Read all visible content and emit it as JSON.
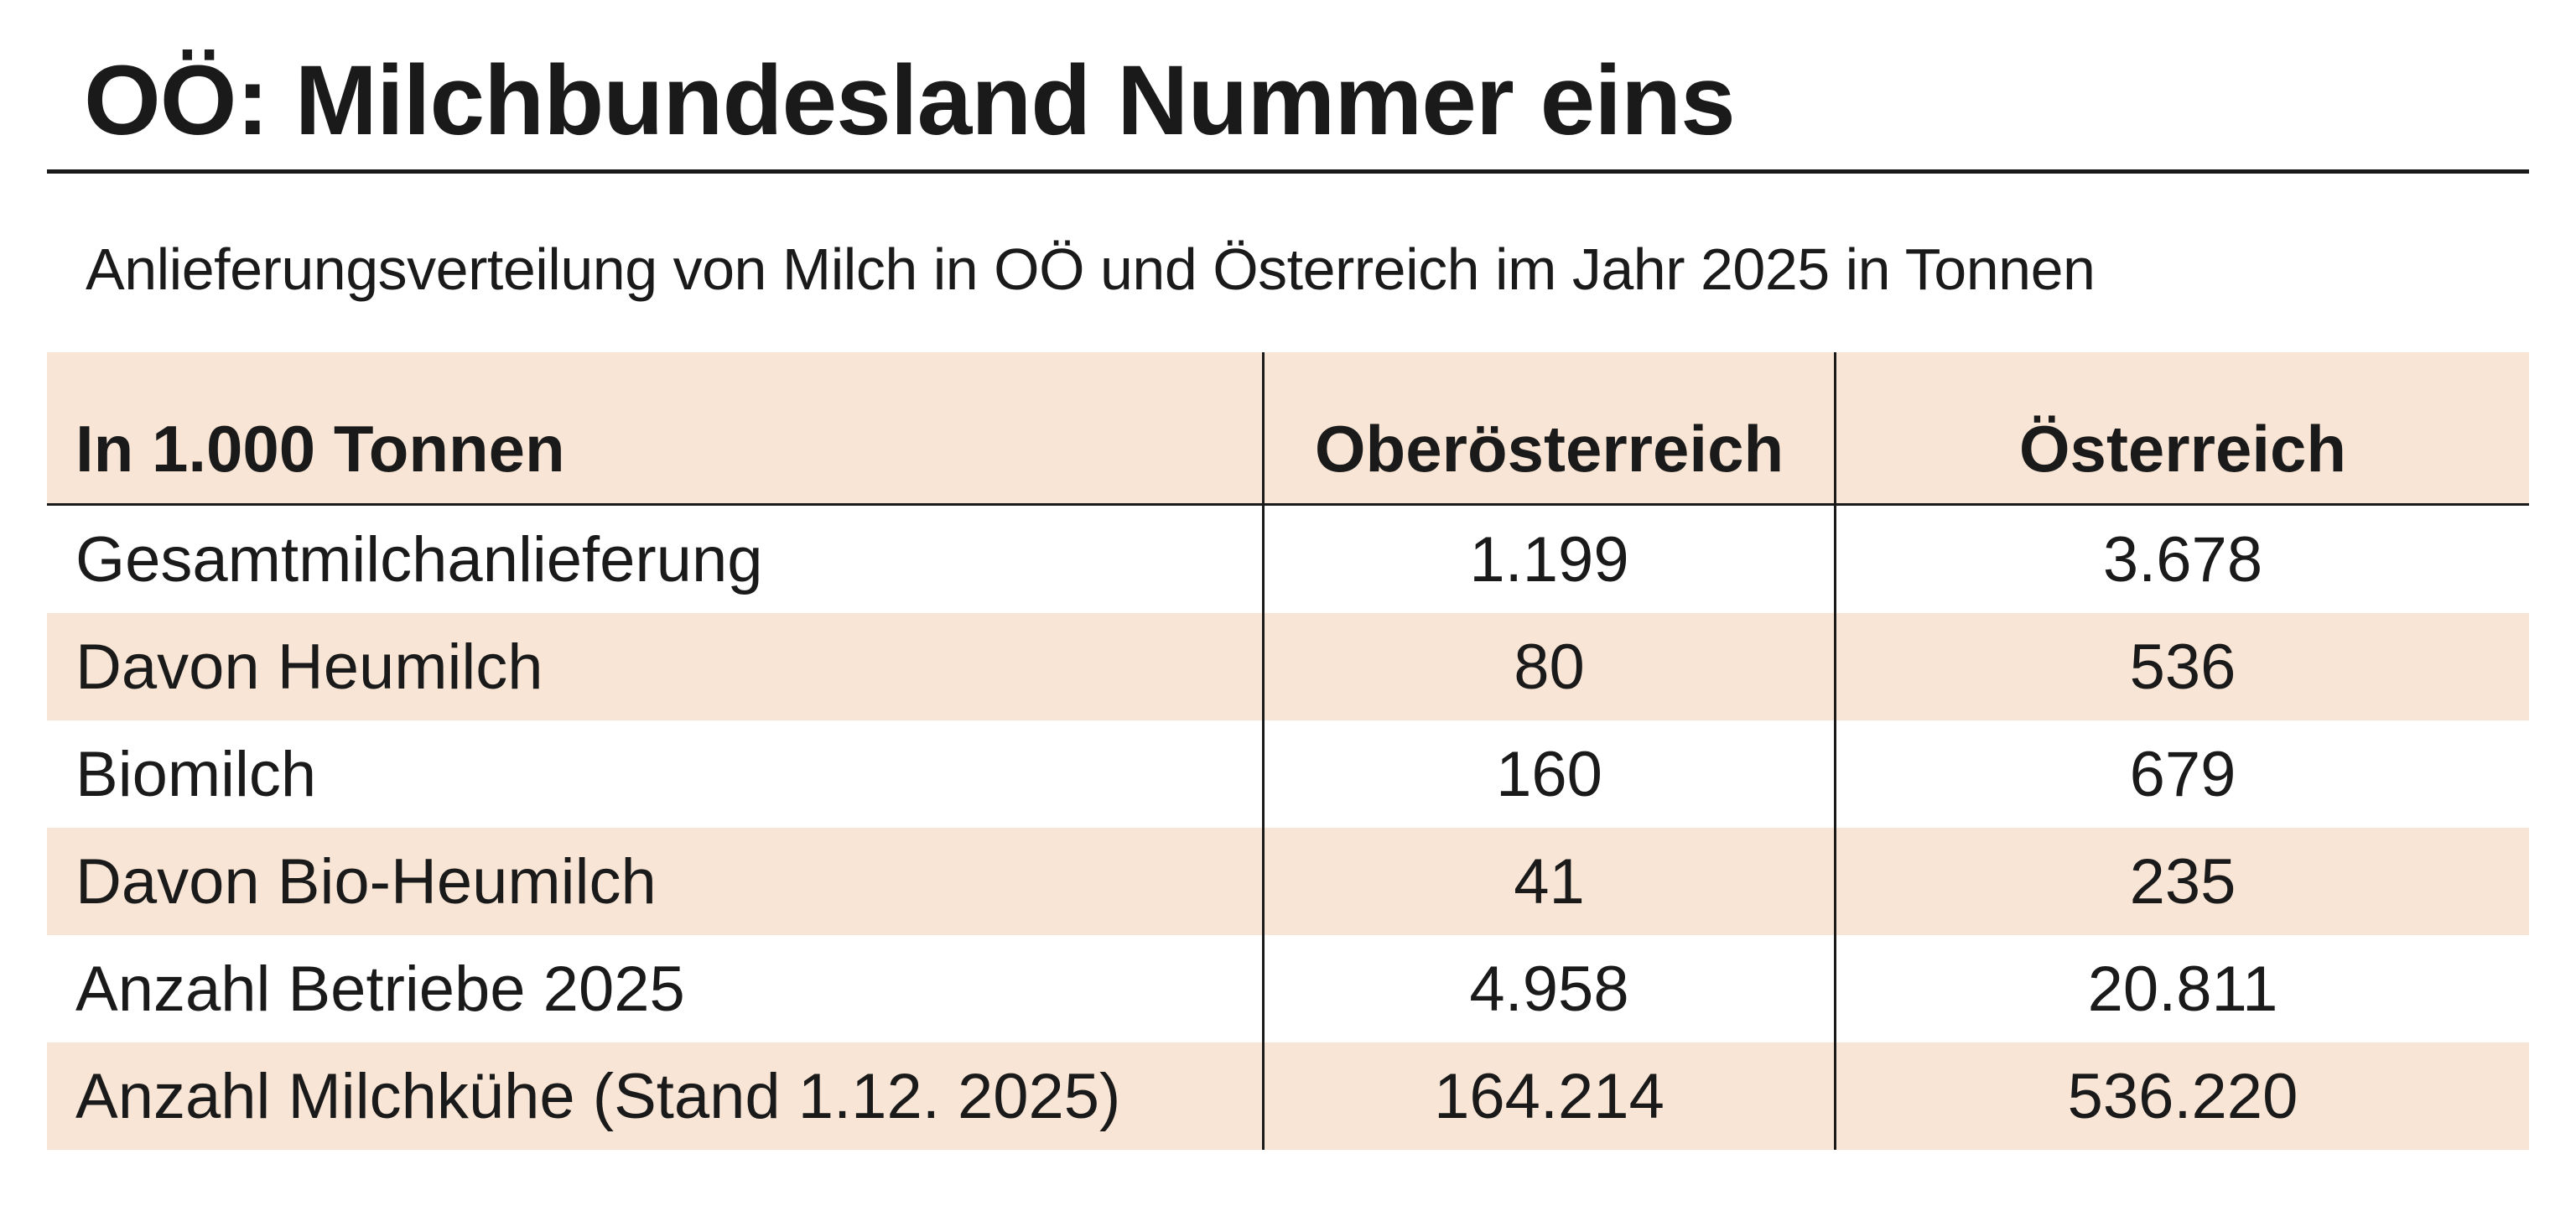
{
  "title": "OÖ: Milchbundesland Nummer eins",
  "subtitle": "Anlieferungsverteilung von Milch in OÖ und Österreich im Jahr 2025 in Tonnen",
  "table": {
    "headers": [
      "In 1.000 Tonnen",
      "Oberösterreich",
      "Österreich"
    ],
    "rows": [
      {
        "label": "Gesamtmilchanlieferung",
        "ooe": "1.199",
        "at": "3.678"
      },
      {
        "label": "Davon Heumilch",
        "ooe": "80",
        "at": "536"
      },
      {
        "label": "Biomilch",
        "ooe": "160",
        "at": "679"
      },
      {
        "label": "Davon Bio-Heumilch",
        "ooe": "41",
        "at": "235"
      },
      {
        "label": "Anzahl Betriebe 2025",
        "ooe": "4.958",
        "at": "20.811"
      },
      {
        "label": "Anzahl Milchkühe (Stand 1.12. 2025)",
        "ooe": "164.214",
        "at": "536.220"
      }
    ]
  },
  "colors": {
    "shade": "#f8e5d5",
    "text": "#1a1a1a"
  }
}
